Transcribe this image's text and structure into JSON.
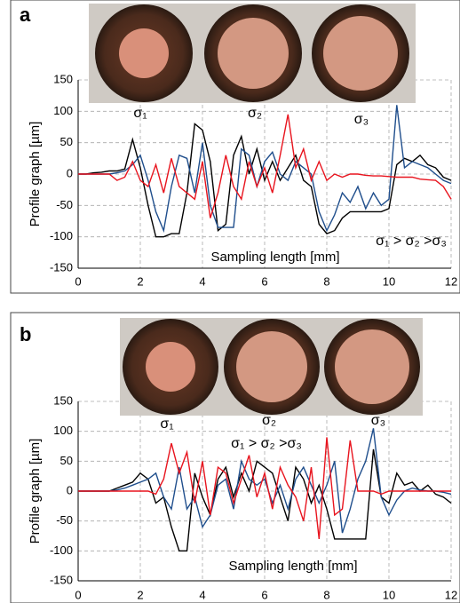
{
  "chart_data": [
    {
      "type": "line",
      "panel_label": "a",
      "x_label": "Sampling length [mm]",
      "y_label": "Profile graph [µm]",
      "annotations": [
        "σ₁",
        "σ₂",
        "σ₃",
        "σ₁ > σ₂ >σ₃"
      ],
      "xlim": [
        0,
        12
      ],
      "ylim": [
        -150,
        150
      ],
      "xticks": [
        0,
        2,
        4,
        6,
        8,
        10,
        12
      ],
      "yticks": [
        -150,
        -100,
        -50,
        0,
        50,
        100,
        150
      ],
      "grid": true,
      "x": [
        0,
        0.25,
        0.5,
        0.75,
        1,
        1.25,
        1.5,
        1.75,
        2,
        2.25,
        2.5,
        2.75,
        3,
        3.25,
        3.5,
        3.75,
        4,
        4.25,
        4.5,
        4.75,
        5,
        5.25,
        5.5,
        5.75,
        6,
        6.25,
        6.5,
        6.75,
        7,
        7.25,
        7.5,
        7.75,
        8,
        8.25,
        8.5,
        8.75,
        9,
        9.25,
        9.5,
        9.75,
        10,
        10.25,
        10.5,
        10.75,
        11,
        11.25,
        11.5,
        11.75,
        12
      ],
      "series": [
        {
          "color": "#000000",
          "values": [
            0,
            0,
            2,
            3,
            5,
            5,
            8,
            55,
            10,
            -50,
            -100,
            -100,
            -95,
            -95,
            -30,
            80,
            70,
            20,
            -90,
            -80,
            30,
            60,
            0,
            40,
            -10,
            20,
            -10,
            10,
            30,
            -10,
            -20,
            -80,
            -95,
            -90,
            -70,
            -60,
            -60,
            -60,
            -60,
            -60,
            -55,
            15,
            25,
            20,
            30,
            15,
            10,
            -5,
            -10
          ]
        },
        {
          "color": "#1f4e8c",
          "values": [
            0,
            0,
            0,
            0,
            0,
            2,
            5,
            15,
            30,
            -10,
            -60,
            -90,
            -20,
            30,
            25,
            -30,
            50,
            -50,
            -85,
            -85,
            -85,
            40,
            30,
            -20,
            20,
            35,
            0,
            -10,
            20,
            10,
            0,
            -60,
            -90,
            -65,
            -30,
            -45,
            -20,
            -55,
            -30,
            -50,
            -40,
            110,
            10,
            20,
            15,
            10,
            0,
            -10,
            -15
          ]
        },
        {
          "color": "#e8141e",
          "values": [
            0,
            0,
            0,
            0,
            0,
            -10,
            -5,
            20,
            -10,
            -20,
            15,
            -30,
            25,
            -20,
            -30,
            -40,
            20,
            -70,
            -30,
            30,
            -20,
            -40,
            20,
            -20,
            10,
            -30,
            30,
            95,
            10,
            40,
            -10,
            20,
            -10,
            0,
            -5,
            0,
            0,
            -2,
            -3,
            -3,
            -4,
            -5,
            -5,
            -5,
            -8,
            -9,
            -10,
            -20,
            -40
          ]
        }
      ]
    },
    {
      "type": "line",
      "panel_label": "b",
      "x_label": "Sampling length [mm]",
      "y_label": "Profile graph [µm]",
      "annotations": [
        "σ₁",
        "σ₂",
        "σ₃",
        "σ₁ > σ₂ >σ₃"
      ],
      "xlim": [
        0,
        12
      ],
      "ylim": [
        -150,
        150
      ],
      "xticks": [
        0,
        2,
        4,
        6,
        8,
        10,
        12
      ],
      "yticks": [
        -150,
        -100,
        -50,
        0,
        50,
        100,
        150
      ],
      "grid": true,
      "x": [
        0,
        0.25,
        0.5,
        0.75,
        1,
        1.25,
        1.5,
        1.75,
        2,
        2.25,
        2.5,
        2.75,
        3,
        3.25,
        3.5,
        3.75,
        4,
        4.25,
        4.5,
        4.75,
        5,
        5.25,
        5.5,
        5.75,
        6,
        6.25,
        6.5,
        6.75,
        7,
        7.25,
        7.5,
        7.75,
        8,
        8.25,
        8.5,
        8.75,
        9,
        9.25,
        9.5,
        9.75,
        10,
        10.25,
        10.5,
        10.75,
        11,
        11.25,
        11.5,
        11.75,
        12
      ],
      "series": [
        {
          "color": "#000000",
          "values": [
            0,
            0,
            0,
            0,
            0,
            5,
            10,
            15,
            30,
            20,
            -20,
            -10,
            -60,
            -100,
            -100,
            30,
            -10,
            -40,
            20,
            40,
            -10,
            30,
            0,
            50,
            40,
            30,
            -10,
            -50,
            40,
            20,
            -20,
            10,
            -30,
            -80,
            -80,
            -80,
            -80,
            -80,
            70,
            -10,
            -20,
            30,
            10,
            15,
            0,
            10,
            -5,
            -10,
            -20
          ]
        },
        {
          "color": "#1f4e8c",
          "values": [
            0,
            0,
            0,
            0,
            0,
            2,
            5,
            10,
            15,
            20,
            30,
            -10,
            -30,
            40,
            -30,
            -10,
            -60,
            -40,
            10,
            20,
            -30,
            50,
            20,
            10,
            20,
            -20,
            10,
            -30,
            20,
            40,
            10,
            -20,
            10,
            50,
            -70,
            -30,
            20,
            50,
            105,
            -10,
            -40,
            -15,
            0,
            5,
            2,
            0,
            0,
            -2,
            -5
          ]
        },
        {
          "color": "#e8141e",
          "values": [
            0,
            0,
            0,
            0,
            0,
            0,
            0,
            0,
            0,
            0,
            -5,
            20,
            80,
            30,
            65,
            -20,
            50,
            -40,
            40,
            30,
            -20,
            20,
            60,
            -10,
            30,
            -30,
            40,
            10,
            -10,
            -50,
            40,
            -80,
            90,
            -40,
            -30,
            85,
            0,
            0,
            0,
            -5,
            0,
            0,
            0,
            0,
            0,
            0,
            0,
            0,
            0
          ]
        }
      ]
    }
  ]
}
